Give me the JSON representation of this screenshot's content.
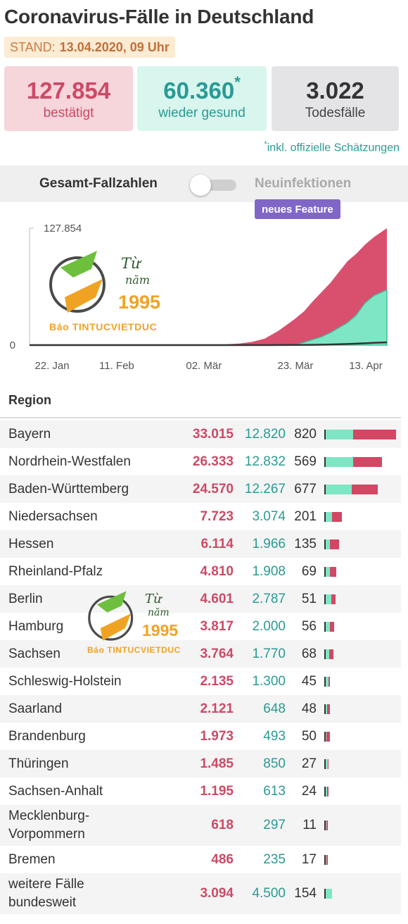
{
  "header": {
    "title": "Coronavirus-Fälle in Deutschland",
    "stand_label": "STAND:",
    "stand_value": "13.04.2020, 09 Uhr"
  },
  "cards": {
    "confirmed": {
      "value": "127.854",
      "label": "bestätigt"
    },
    "recovered": {
      "value": "60.360",
      "mark": "*",
      "label": "wieder gesund"
    },
    "deaths": {
      "value": "3.022",
      "label": "Todesfälle"
    }
  },
  "note": {
    "mark": "*",
    "text": "inkl. offizielle Schätzungen"
  },
  "toggle": {
    "left_label": "Gesamt-Fallzahlen",
    "right_label": "Neuinfektionen",
    "badge": "neues Feature",
    "state": "off"
  },
  "watermark": {
    "line1": "Từ",
    "line2": "năm",
    "year": "1995",
    "brand": "Báo TINTUCVIETDUC"
  },
  "colors": {
    "confirmed": "#d9506e",
    "recovered": "#7ee6c5",
    "deaths": "#333333"
  },
  "chart_data": {
    "type": "area",
    "x": [
      "2020-01-22",
      "2020-01-29",
      "2020-02-05",
      "2020-02-11",
      "2020-02-18",
      "2020-02-25",
      "2020-03-02",
      "2020-03-06",
      "2020-03-10",
      "2020-03-13",
      "2020-03-16",
      "2020-03-19",
      "2020-03-21",
      "2020-03-23",
      "2020-03-25",
      "2020-03-27",
      "2020-03-29",
      "2020-03-31",
      "2020-04-02",
      "2020-04-04",
      "2020-04-06",
      "2020-04-08",
      "2020-04-10",
      "2020-04-13"
    ],
    "x_tick_labels": [
      "22. Jan",
      "11. Feb",
      "02. Mär",
      "23. Mär",
      "13. Apr"
    ],
    "x_tick_dates": [
      "2020-01-22",
      "2020-02-11",
      "2020-03-02",
      "2020-03-23",
      "2020-04-13"
    ],
    "y_tick_labels": [
      "127.854",
      "0"
    ],
    "ylim": [
      0,
      127854
    ],
    "series": [
      {
        "key": "confirmed",
        "values": [
          0,
          4,
          12,
          16,
          16,
          18,
          160,
          650,
          1600,
          3500,
          7200,
          15300,
          22000,
          29000,
          37000,
          48000,
          58000,
          68000,
          80000,
          92000,
          100000,
          110000,
          118000,
          127854
        ]
      },
      {
        "key": "recovered",
        "values": [
          0,
          0,
          0,
          0,
          12,
          16,
          16,
          18,
          25,
          45,
          60,
          110,
          200,
          400,
          3000,
          6000,
          9000,
          13500,
          19000,
          24500,
          33000,
          46000,
          54000,
          60360
        ]
      },
      {
        "key": "deaths",
        "values": [
          0,
          0,
          0,
          0,
          0,
          0,
          0,
          0,
          2,
          7,
          17,
          44,
          84,
          120,
          200,
          300,
          480,
          680,
          950,
          1250,
          1600,
          2000,
          2500,
          3022
        ]
      }
    ]
  },
  "table": {
    "header": "Region",
    "rows": [
      {
        "region": "Bayern",
        "confirmed": "33.015",
        "recovered": "12.820",
        "deaths": "820",
        "c": 33015,
        "r": 12820
      },
      {
        "region": "Nordrhein-Westfalen",
        "confirmed": "26.333",
        "recovered": "12.832",
        "deaths": "569",
        "c": 26333,
        "r": 12832
      },
      {
        "region": "Baden-Württemberg",
        "confirmed": "24.570",
        "recovered": "12.267",
        "deaths": "677",
        "c": 24570,
        "r": 12267
      },
      {
        "region": "Niedersachsen",
        "confirmed": "7.723",
        "recovered": "3.074",
        "deaths": "201",
        "c": 7723,
        "r": 3074
      },
      {
        "region": "Hessen",
        "confirmed": "6.114",
        "recovered": "1.966",
        "deaths": "135",
        "c": 6114,
        "r": 1966
      },
      {
        "region": "Rheinland-Pfalz",
        "confirmed": "4.810",
        "recovered": "1.908",
        "deaths": "69",
        "c": 4810,
        "r": 1908
      },
      {
        "region": "Berlin",
        "confirmed": "4.601",
        "recovered": "2.787",
        "deaths": "51",
        "c": 4601,
        "r": 2787
      },
      {
        "region": "Hamburg",
        "confirmed": "3.817",
        "recovered": "2.000",
        "deaths": "56",
        "c": 3817,
        "r": 2000
      },
      {
        "region": "Sachsen",
        "confirmed": "3.764",
        "recovered": "1.770",
        "deaths": "68",
        "c": 3764,
        "r": 1770
      },
      {
        "region": "Schleswig-Holstein",
        "confirmed": "2.135",
        "recovered": "1.300",
        "deaths": "45",
        "c": 2135,
        "r": 1300
      },
      {
        "region": "Saarland",
        "confirmed": "2.121",
        "recovered": "648",
        "deaths": "48",
        "c": 2121,
        "r": 648
      },
      {
        "region": "Brandenburg",
        "confirmed": "1.973",
        "recovered": "493",
        "deaths": "50",
        "c": 1973,
        "r": 493
      },
      {
        "region": "Thüringen",
        "confirmed": "1.485",
        "recovered": "850",
        "deaths": "27",
        "c": 1485,
        "r": 850
      },
      {
        "region": "Sachsen-Anhalt",
        "confirmed": "1.195",
        "recovered": "613",
        "deaths": "24",
        "c": 1195,
        "r": 613
      },
      {
        "region": "Mecklenburg-Vorpommern",
        "name_lines": [
          "Mecklenburg-",
          "Vorpommern"
        ],
        "confirmed": "618",
        "recovered": "297",
        "deaths": "11",
        "c": 618,
        "r": 297
      },
      {
        "region": "Bremen",
        "confirmed": "486",
        "recovered": "235",
        "deaths": "17",
        "c": 486,
        "r": 235
      },
      {
        "region": "weitere Fälle bundesweit",
        "name_lines": [
          "weitere Fälle",
          "bundesweit"
        ],
        "confirmed": "3.094",
        "recovered": "4.500",
        "deaths": "154",
        "c": 3094,
        "r": 4500
      }
    ]
  }
}
